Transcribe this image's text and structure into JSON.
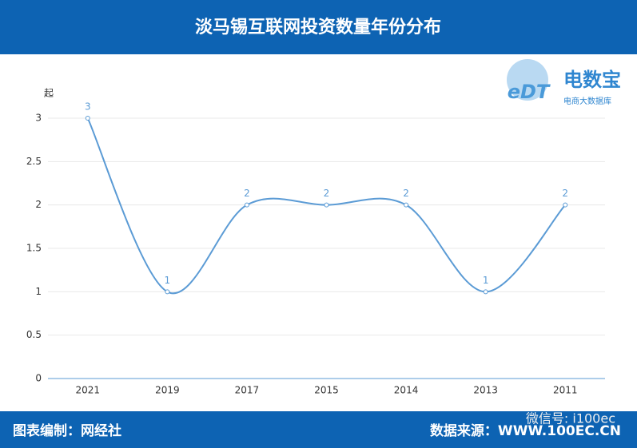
{
  "chart_data": {
    "type": "line",
    "title": "淡马锡互联网投资数量年份分布",
    "y_label": "起",
    "categories": [
      "2021",
      "2019",
      "2017",
      "2015",
      "2014",
      "2013",
      "2011"
    ],
    "values": [
      3,
      1,
      2,
      2,
      2,
      1,
      2
    ],
    "color": "#5b9bd5",
    "smooth": true,
    "ylim": [
      0,
      3
    ],
    "yticks": [
      0,
      0.5,
      1,
      1.5,
      2,
      2.5,
      3
    ],
    "grid": true
  },
  "logo": {
    "name": "电数宝",
    "subtitle": "电商大数据库",
    "mark": "eDT"
  },
  "footer": {
    "left": "图表编制：网经社",
    "right": "数据来源：WWW.100EC.CN",
    "watermark": "微信号: i100ec"
  }
}
